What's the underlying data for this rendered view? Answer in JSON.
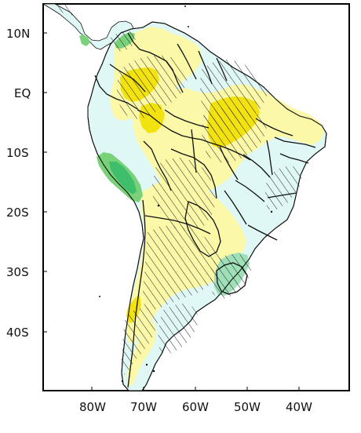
{
  "map": {
    "latitude_labels": [
      "10N",
      "EQ",
      "10S",
      "20S",
      "30S",
      "40S"
    ],
    "longitude_labels": [
      "80W",
      "70W",
      "60W",
      "50W",
      "40W"
    ],
    "colors": {
      "frame": "#000000",
      "ocean": "#ffffff",
      "land_light_blue": "#dff7f5",
      "yellow": "#fbf8a8",
      "yellow_strong": "#f2e20f",
      "green": "#79d17a",
      "green_strong": "#3fbf6c",
      "hatch": "#1c1c1c"
    }
  }
}
